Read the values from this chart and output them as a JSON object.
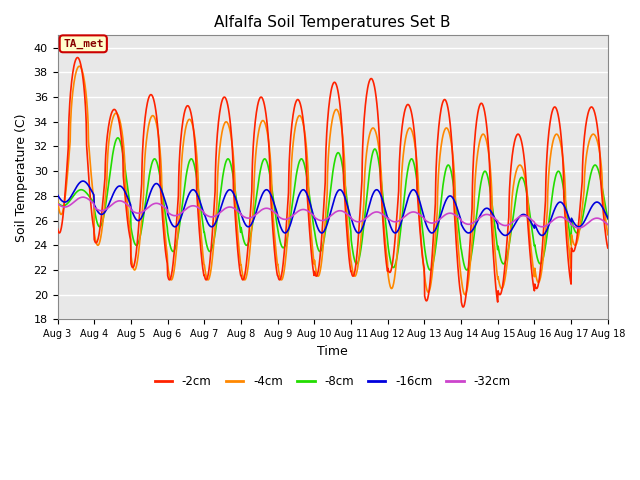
{
  "title": "Alfalfa Soil Temperatures Set B",
  "xlabel": "Time",
  "ylabel": "Soil Temperature (C)",
  "ylim": [
    18,
    41
  ],
  "yticks": [
    18,
    20,
    22,
    24,
    26,
    28,
    30,
    32,
    34,
    36,
    38,
    40
  ],
  "fig_bg_color": "#ffffff",
  "plot_bg_color": "#e8e8e8",
  "grid_color": "#ffffff",
  "series_colors": {
    "-2cm": "#ff2200",
    "-4cm": "#ff8800",
    "-8cm": "#22dd00",
    "-16cm": "#0000dd",
    "-32cm": "#cc44cc"
  },
  "legend_label": "TA_met",
  "legend_box_color": "#ffffcc",
  "legend_box_edge": "#cc0000",
  "n_days": 15,
  "start_day": 3,
  "points_per_day": 96,
  "line_width": 1.2
}
